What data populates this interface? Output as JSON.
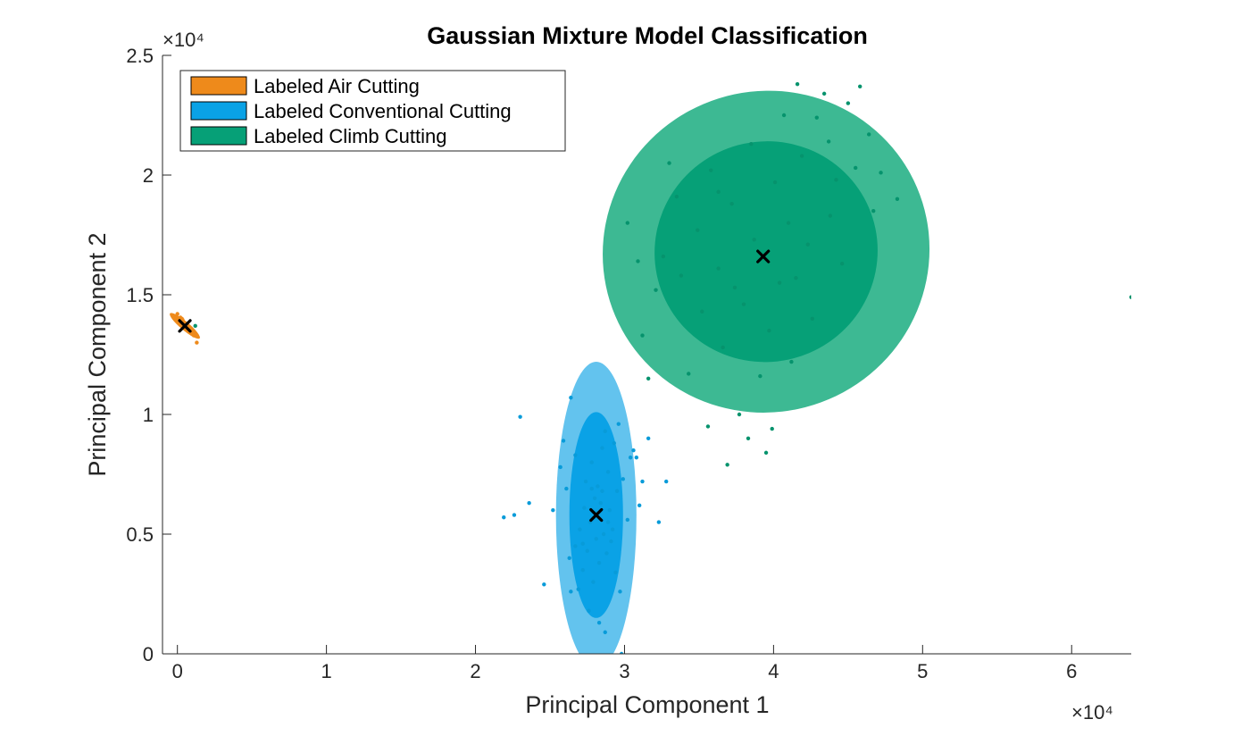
{
  "colors": {
    "air": "#EE8A1B",
    "conventional": "#0AA2E6",
    "conventional_outer": "#63C3EE",
    "conventional_points": "#089BD9",
    "climb": "#06A077",
    "climb_outer": "#3DB993",
    "climb_points": "#06936D",
    "axis": "#262626",
    "centroid": "#000000"
  },
  "chart_data": {
    "type": "scatter",
    "title": "Gaussian Mixture Model Classification",
    "xlabel": "Principal Component 1",
    "ylabel": "Principal Component 2",
    "x_exponent": "×10⁴",
    "y_exponent": "×10⁴",
    "xlim": [
      -1000,
      64000
    ],
    "ylim": [
      0,
      25000
    ],
    "xticks": [
      0,
      10000,
      20000,
      30000,
      40000,
      50000,
      60000
    ],
    "xtick_labels": [
      "0",
      "1",
      "2",
      "3",
      "4",
      "5",
      "6"
    ],
    "yticks": [
      0,
      5000,
      10000,
      15000,
      20000,
      25000
    ],
    "ytick_labels": [
      "0",
      "0.5",
      "1",
      "1.5",
      "2",
      "2.5"
    ],
    "legend_position": "top-left",
    "legend": [
      {
        "label": "Labeled Air Cutting",
        "color": "#EE8A1B"
      },
      {
        "label": "Labeled Conventional Cutting",
        "color": "#0AA2E6"
      },
      {
        "label": "Labeled Climb Cutting",
        "color": "#06A077"
      }
    ],
    "ellipses": [
      {
        "class": "air",
        "cx": 500,
        "cy": 13700,
        "rx": 1300,
        "ry": 180,
        "angle": -40,
        "level": "outer",
        "color": "#EE8A1B"
      },
      {
        "class": "conventional",
        "cx": 28100,
        "cy": 5800,
        "rx": 2700,
        "ry": 6400,
        "angle": 0,
        "level": "outer",
        "color": "#63C3EE"
      },
      {
        "class": "conventional",
        "cx": 28100,
        "cy": 5800,
        "rx": 1800,
        "ry": 4300,
        "angle": 0,
        "level": "inner",
        "color": "#0AA2E6"
      },
      {
        "class": "climb",
        "cx": 39500,
        "cy": 16800,
        "rx": 11000,
        "ry": 6700,
        "angle": 23,
        "level": "outer",
        "color": "#3DB993"
      },
      {
        "class": "climb",
        "cx": 39500,
        "cy": 16800,
        "rx": 7500,
        "ry": 4600,
        "angle": 23,
        "level": "inner",
        "color": "#06A077"
      }
    ],
    "centroids": [
      {
        "class": "air",
        "x": 500,
        "y": 13700
      },
      {
        "class": "conventional",
        "x": 28100,
        "y": 5800
      },
      {
        "class": "climb",
        "x": 39300,
        "y": 16600
      }
    ],
    "series": [
      {
        "name": "Labeled Air Cutting",
        "color": "#EE8A1B",
        "points": [
          [
            0,
            14200
          ],
          [
            200,
            14050
          ],
          [
            350,
            13950
          ],
          [
            500,
            13800
          ],
          [
            650,
            13700
          ],
          [
            800,
            13550
          ],
          [
            950,
            13400
          ],
          [
            1100,
            13300
          ],
          [
            1300,
            13000
          ],
          [
            300,
            14000
          ],
          [
            700,
            13650
          ],
          [
            1000,
            13350
          ]
        ]
      },
      {
        "name": "Labeled Conventional Cutting",
        "color": "#089BD9",
        "points": [
          [
            21900,
            5700
          ],
          [
            22600,
            5800
          ],
          [
            23000,
            9900
          ],
          [
            23600,
            6300
          ],
          [
            24600,
            2900
          ],
          [
            25200,
            6000
          ],
          [
            25700,
            7800
          ],
          [
            25900,
            8900
          ],
          [
            26100,
            6900
          ],
          [
            26300,
            4000
          ],
          [
            26400,
            2600
          ],
          [
            26400,
            10700
          ],
          [
            26700,
            8300
          ],
          [
            26900,
            2700
          ],
          [
            26700,
            4500
          ],
          [
            27000,
            5200
          ],
          [
            27200,
            3500
          ],
          [
            27300,
            6100
          ],
          [
            27400,
            7200
          ],
          [
            27500,
            4300
          ],
          [
            27600,
            1800
          ],
          [
            27700,
            5500
          ],
          [
            27800,
            8000
          ],
          [
            27900,
            3000
          ],
          [
            28000,
            6500
          ],
          [
            28100,
            4800
          ],
          [
            28100,
            5900
          ],
          [
            28200,
            7000
          ],
          [
            28300,
            1300
          ],
          [
            28300,
            3800
          ],
          [
            28400,
            6300
          ],
          [
            28500,
            8600
          ],
          [
            28600,
            5000
          ],
          [
            28700,
            900
          ],
          [
            28700,
            9300
          ],
          [
            28800,
            4200
          ],
          [
            28900,
            7600
          ],
          [
            29000,
            6000
          ],
          [
            29200,
            5200
          ],
          [
            29300,
            8800
          ],
          [
            29400,
            3400
          ],
          [
            29500,
            6800
          ],
          [
            29600,
            9600
          ],
          [
            29700,
            2600
          ],
          [
            29800,
            0
          ],
          [
            29900,
            7300
          ],
          [
            30200,
            5600
          ],
          [
            30400,
            8200
          ],
          [
            30600,
            8500
          ],
          [
            30800,
            8200
          ],
          [
            31000,
            6200
          ],
          [
            31200,
            7200
          ],
          [
            31600,
            9000
          ],
          [
            32300,
            5500
          ],
          [
            32800,
            7200
          ],
          [
            27200,
            4600
          ],
          [
            28500,
            6800
          ],
          [
            29100,
            4700
          ],
          [
            27800,
            6900
          ],
          [
            28900,
            5500
          ]
        ]
      },
      {
        "name": "Labeled Climb Cutting",
        "color": "#06936D",
        "points": [
          [
            1200,
            13700
          ],
          [
            30200,
            18000
          ],
          [
            30900,
            16400
          ],
          [
            31200,
            13300
          ],
          [
            31600,
            11500
          ],
          [
            32100,
            15200
          ],
          [
            32600,
            16600
          ],
          [
            33000,
            20500
          ],
          [
            33500,
            19100
          ],
          [
            33800,
            15800
          ],
          [
            34300,
            11700
          ],
          [
            34900,
            17700
          ],
          [
            35200,
            14300
          ],
          [
            35600,
            9500
          ],
          [
            35800,
            20200
          ],
          [
            36300,
            16100
          ],
          [
            36600,
            12800
          ],
          [
            36900,
            7900
          ],
          [
            37200,
            18800
          ],
          [
            37700,
            10000
          ],
          [
            38000,
            14600
          ],
          [
            38300,
            9000
          ],
          [
            38500,
            21300
          ],
          [
            38700,
            17300
          ],
          [
            39100,
            11600
          ],
          [
            39300,
            16600
          ],
          [
            39500,
            8400
          ],
          [
            39700,
            13500
          ],
          [
            39900,
            9400
          ],
          [
            40100,
            19700
          ],
          [
            40400,
            15500
          ],
          [
            40700,
            22500
          ],
          [
            41000,
            18000
          ],
          [
            41200,
            12200
          ],
          [
            41600,
            23800
          ],
          [
            41900,
            20800
          ],
          [
            42300,
            17100
          ],
          [
            42600,
            14000
          ],
          [
            42900,
            22400
          ],
          [
            43400,
            23400
          ],
          [
            43700,
            21400
          ],
          [
            44200,
            19800
          ],
          [
            44600,
            16300
          ],
          [
            45000,
            23000
          ],
          [
            45500,
            20300
          ],
          [
            45800,
            23700
          ],
          [
            46400,
            21700
          ],
          [
            46700,
            18500
          ],
          [
            47200,
            20100
          ],
          [
            48300,
            19000
          ],
          [
            64000,
            14900
          ],
          [
            37400,
            15300
          ],
          [
            41500,
            15700
          ],
          [
            36300,
            19300
          ],
          [
            43800,
            18300
          ]
        ]
      }
    ]
  }
}
